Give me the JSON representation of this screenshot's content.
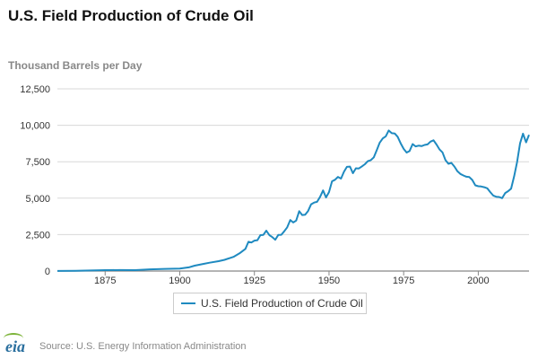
{
  "chart_data": {
    "type": "line",
    "title": "U.S. Field Production of Crude Oil",
    "ylabel": "Thousand Barrels per Day",
    "xlabel": "",
    "xlim": [
      1859,
      2017
    ],
    "ylim": [
      0,
      12500
    ],
    "xticks": [
      1875,
      1900,
      1925,
      1950,
      1975,
      2000
    ],
    "yticks": [
      0,
      2500,
      5000,
      7500,
      10000,
      12500
    ],
    "ytick_labels": [
      "0",
      "2,500",
      "5,000",
      "7,500",
      "10,000",
      "12,500"
    ],
    "grid": true,
    "legend_position": "bottom-center",
    "series": [
      {
        "name": "U.S. Field Production of Crude Oil",
        "color": "#1f8ac0",
        "x": [
          1859,
          1865,
          1870,
          1875,
          1880,
          1885,
          1890,
          1895,
          1900,
          1903,
          1905,
          1908,
          1910,
          1913,
          1915,
          1918,
          1920,
          1922,
          1923,
          1924,
          1925,
          1926,
          1927,
          1928,
          1929,
          1930,
          1931,
          1932,
          1933,
          1934,
          1935,
          1936,
          1937,
          1938,
          1939,
          1940,
          1941,
          1942,
          1943,
          1944,
          1945,
          1946,
          1947,
          1948,
          1949,
          1950,
          1951,
          1952,
          1953,
          1954,
          1955,
          1956,
          1957,
          1958,
          1959,
          1960,
          1961,
          1962,
          1963,
          1964,
          1965,
          1966,
          1967,
          1968,
          1969,
          1970,
          1971,
          1972,
          1973,
          1974,
          1975,
          1976,
          1977,
          1978,
          1979,
          1980,
          1981,
          1982,
          1983,
          1984,
          1985,
          1986,
          1987,
          1988,
          1989,
          1990,
          1991,
          1992,
          1993,
          1994,
          1995,
          1996,
          1997,
          1998,
          1999,
          2000,
          2001,
          2002,
          2003,
          2004,
          2005,
          2006,
          2007,
          2008,
          2009,
          2010,
          2011,
          2012,
          2013,
          2014,
          2015,
          2016,
          2017
        ],
        "values": [
          5,
          20,
          40,
          60,
          70,
          60,
          120,
          150,
          170,
          250,
          370,
          490,
          570,
          680,
          770,
          970,
          1210,
          1520,
          2010,
          1960,
          2090,
          2120,
          2460,
          2480,
          2770,
          2460,
          2330,
          2150,
          2480,
          2490,
          2730,
          3000,
          3500,
          3330,
          3460,
          4110,
          3840,
          3860,
          4120,
          4580,
          4700,
          4750,
          5090,
          5530,
          5050,
          5410,
          6160,
          6260,
          6460,
          6340,
          6810,
          7150,
          7170,
          6710,
          7050,
          7040,
          7180,
          7330,
          7540,
          7610,
          7800,
          8300,
          8810,
          9100,
          9240,
          9640,
          9460,
          9440,
          9210,
          8770,
          8380,
          8130,
          8240,
          8710,
          8550,
          8600,
          8570,
          8650,
          8690,
          8880,
          8970,
          8680,
          8350,
          8140,
          7610,
          7360,
          7420,
          7170,
          6850,
          6660,
          6560,
          6470,
          6450,
          6250,
          5880,
          5820,
          5800,
          5750,
          5680,
          5420,
          5180,
          5100,
          5080,
          5000,
          5350,
          5480,
          5650,
          6500,
          7490,
          8760,
          9430,
          8830,
          9350
        ]
      }
    ]
  },
  "footer": {
    "logo_text": "eia",
    "source": "Source: U.S. Energy Information Administration"
  }
}
